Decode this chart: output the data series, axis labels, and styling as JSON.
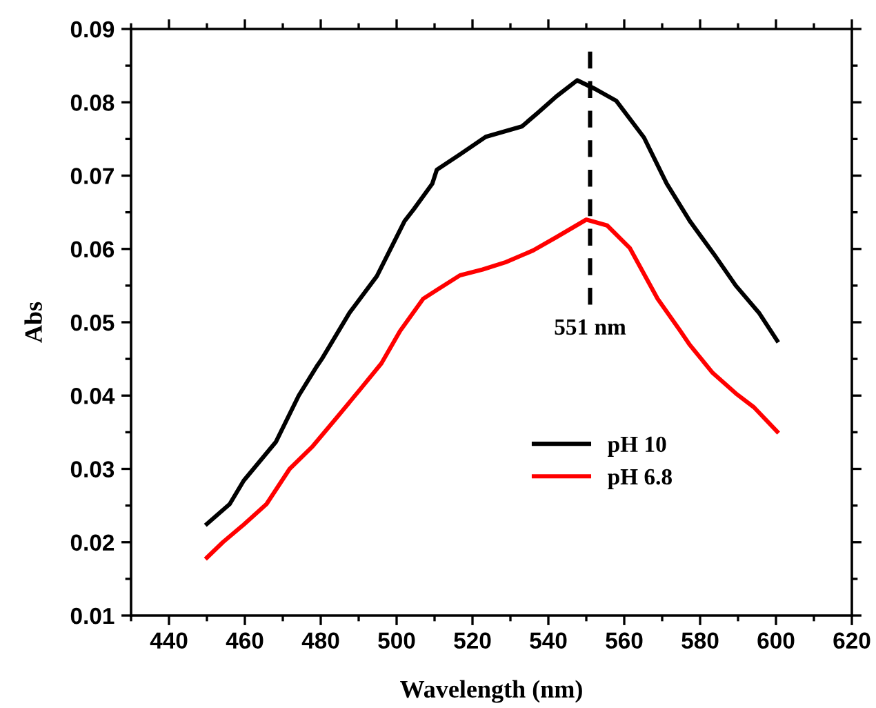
{
  "chart_data": {
    "type": "line",
    "xlabel": "Wavelength (nm)",
    "ylabel": "Abs",
    "xlim": [
      430,
      620
    ],
    "xticks": [
      440,
      460,
      480,
      500,
      520,
      540,
      560,
      580,
      600,
      620
    ],
    "ylim": [
      0.01,
      0.09
    ],
    "yticks": [
      0.01,
      0.02,
      0.03,
      0.04,
      0.05,
      0.06,
      0.07,
      0.08,
      0.09
    ],
    "legend": "bottom right",
    "grid": false,
    "marker": "none",
    "line_style": "solid",
    "ref_lines": [
      {
        "axis": "x",
        "value": 551,
        "label": "551 nm",
        "color": "#000000",
        "line_style": "dashed"
      }
    ],
    "series": [
      {
        "name": "pH 10",
        "color": "#000000",
        "x": [
          450,
          456,
          459.7,
          468.2,
          474.2,
          479.1,
          480.3,
          487.6,
          494.8,
          502.1,
          504.5,
          509.4,
          510.6,
          516.7,
          523.5,
          533,
          537.3,
          542.1,
          547.6,
          552.4,
          557.9,
          565.2,
          571.2,
          577.3,
          583.9,
          589.4,
          595.5,
          600.3
        ],
        "values": [
          0.0225,
          0.0252,
          0.0284,
          0.0337,
          0.04,
          0.0441,
          0.045,
          0.0513,
          0.0563,
          0.0638,
          0.0654,
          0.0689,
          0.0708,
          0.0729,
          0.0753,
          0.0767,
          0.0786,
          0.0808,
          0.083,
          0.0818,
          0.0802,
          0.0752,
          0.0689,
          0.0638,
          0.0591,
          0.055,
          0.0513,
          0.0475
        ]
      },
      {
        "name": "pH 6.8",
        "color": "#ff0000",
        "x": [
          450,
          454.2,
          459.7,
          465.7,
          471.8,
          477.9,
          483.9,
          490,
          496,
          500.9,
          507,
          510.6,
          516.7,
          522.7,
          528.8,
          536,
          542.1,
          550,
          555.5,
          561.5,
          568.8,
          574.8,
          577.3,
          583.3,
          589.4,
          594.2,
          600.3
        ],
        "values": [
          0.0179,
          0.02,
          0.0224,
          0.0252,
          0.03,
          0.0331,
          0.0368,
          0.0406,
          0.0444,
          0.0488,
          0.0532,
          0.0544,
          0.0564,
          0.0572,
          0.0582,
          0.0598,
          0.0616,
          0.064,
          0.0632,
          0.0601,
          0.0532,
          0.0488,
          0.0469,
          0.0431,
          0.0403,
          0.0384,
          0.0351
        ]
      }
    ]
  }
}
